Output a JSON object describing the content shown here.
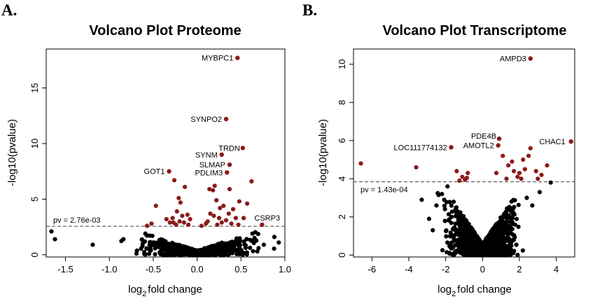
{
  "panel_labels": [
    "A.",
    "B."
  ],
  "chart_data": [
    {
      "type": "scatter",
      "panel": "A.",
      "title": "Volcano Plot Proteome",
      "xlabel": "log2fold change",
      "xlabel_main": "log",
      "xlabel_sub": "2",
      "xlabel_rest": "fold change",
      "ylabel": "-log10(pvalue)",
      "xlim": [
        -1.72,
        1.0
      ],
      "ylim": [
        -0.2,
        18.5
      ],
      "xticks": [
        -1.5,
        -1.0,
        -0.5,
        0.0,
        0.5,
        1.0
      ],
      "xtick_labels": [
        "-1.5",
        "-1.0",
        "-0.5",
        "0.0",
        "0.5",
        "1.0"
      ],
      "yticks": [
        0,
        5,
        10,
        15
      ],
      "ytick_labels": [
        "0",
        "5",
        "10",
        "15"
      ],
      "threshold": {
        "y": 2.56,
        "label": "pv = 2.76e-03"
      },
      "colors": {
        "significant": "#8b1a1a",
        "nonsignificant": "#000000"
      },
      "highlighted": [
        {
          "label": "MYBPC1",
          "x": 0.46,
          "y": 17.7
        },
        {
          "label": "SYNPO2",
          "x": 0.33,
          "y": 12.2
        },
        {
          "label": "TRDN",
          "x": 0.52,
          "y": 9.6
        },
        {
          "label": "SYNM",
          "x": 0.28,
          "y": 9.0
        },
        {
          "label": "SLMAP",
          "x": 0.37,
          "y": 8.1
        },
        {
          "label": "PDLIM3",
          "x": 0.34,
          "y": 7.4
        },
        {
          "label": "GOT1",
          "x": -0.32,
          "y": 7.5
        },
        {
          "label": "CSRP3",
          "x": 0.74,
          "y": 2.7
        }
      ],
      "significant_points": [
        [
          -0.26,
          6.7
        ],
        [
          -0.21,
          5.1
        ],
        [
          -0.47,
          4.4
        ],
        [
          -0.14,
          6.1
        ],
        [
          -0.19,
          4.7
        ],
        [
          -0.23,
          3.9
        ],
        [
          -0.17,
          3.5
        ],
        [
          -0.28,
          3.3
        ],
        [
          -0.11,
          3.6
        ],
        [
          -0.08,
          3.2
        ],
        [
          -0.31,
          2.9
        ],
        [
          -0.24,
          2.7
        ],
        [
          -0.35,
          3.2
        ],
        [
          -0.52,
          2.8
        ],
        [
          -0.15,
          2.9
        ],
        [
          -0.1,
          2.7
        ],
        [
          -0.57,
          2.6
        ],
        [
          -0.2,
          3.0
        ],
        [
          -0.27,
          2.9
        ],
        [
          0.2,
          6.2
        ],
        [
          0.18,
          5.8
        ],
        [
          0.14,
          5.9
        ],
        [
          0.37,
          5.9
        ],
        [
          0.62,
          6.6
        ],
        [
          0.22,
          4.9
        ],
        [
          0.3,
          4.4
        ],
        [
          0.41,
          4.1
        ],
        [
          0.48,
          4.8
        ],
        [
          0.26,
          4.2
        ],
        [
          0.15,
          3.7
        ],
        [
          0.19,
          3.5
        ],
        [
          0.25,
          3.3
        ],
        [
          0.33,
          3.1
        ],
        [
          0.44,
          3.3
        ],
        [
          0.53,
          3.3
        ],
        [
          0.57,
          4.6
        ],
        [
          0.12,
          3.0
        ],
        [
          0.36,
          3.7
        ],
        [
          0.28,
          2.9
        ],
        [
          0.47,
          2.7
        ],
        [
          0.39,
          2.8
        ],
        [
          0.23,
          2.7
        ],
        [
          0.1,
          2.8
        ],
        [
          0.05,
          2.6
        ]
      ],
      "nonsig_extra": [
        [
          -1.66,
          2.1
        ],
        [
          -1.62,
          1.4
        ],
        [
          -1.19,
          0.9
        ],
        [
          -0.84,
          1.4
        ],
        [
          -0.62,
          1.0
        ],
        [
          -0.59,
          1.9
        ],
        [
          0.88,
          1.6
        ],
        [
          0.93,
          1.1
        ],
        [
          0.76,
          0.9
        ],
        [
          0.7,
          0.6
        ],
        [
          -0.51,
          1.7
        ],
        [
          0.63,
          1.9
        ]
      ],
      "cloud": {
        "center_x": 0.0,
        "spread": 0.28,
        "max_y": 2.5,
        "count": 650
      }
    },
    {
      "type": "scatter",
      "panel": "B.",
      "title": "Volcano Plot Transcriptome",
      "xlabel": "log2fold change",
      "xlabel_main": "log",
      "xlabel_sub": "2",
      "xlabel_rest": "fold change",
      "ylabel": "-log10(pvalue)",
      "xlim": [
        -7.0,
        5.0
      ],
      "ylim": [
        -0.1,
        10.8
      ],
      "xticks": [
        -6,
        -4,
        -2,
        0,
        2,
        4
      ],
      "xtick_labels": [
        "-6",
        "-4",
        "-2",
        "0",
        "2",
        "4"
      ],
      "yticks": [
        0,
        2,
        4,
        6,
        8,
        10
      ],
      "ytick_labels": [
        "0",
        "2",
        "4",
        "6",
        "8",
        "10"
      ],
      "threshold": {
        "y": 3.84,
        "label": "pv = 1.43e-04"
      },
      "colors": {
        "significant": "#8b1a1a",
        "nonsignificant": "#000000"
      },
      "highlighted": [
        {
          "label": "AMPD3",
          "x": 2.6,
          "y": 10.3
        },
        {
          "label": "PDE4B",
          "x": 0.9,
          "y": 6.1
        },
        {
          "label": "AMOTL2",
          "x": 0.85,
          "y": 5.75
        },
        {
          "label": "LOC111774132",
          "x": -1.7,
          "y": 5.65
        },
        {
          "label": "CHAC1",
          "x": 4.8,
          "y": 5.95
        }
      ],
      "significant_points": [
        [
          -6.6,
          4.8
        ],
        [
          -3.6,
          4.6
        ],
        [
          -1.4,
          4.4
        ],
        [
          -1.1,
          4.1
        ],
        [
          -0.85,
          4.05
        ],
        [
          -0.95,
          3.95
        ],
        [
          -1.25,
          3.9
        ],
        [
          -0.8,
          4.3
        ],
        [
          1.1,
          5.2
        ],
        [
          1.4,
          4.7
        ],
        [
          1.7,
          4.4
        ],
        [
          2.0,
          4.3
        ],
        [
          2.3,
          4.5
        ],
        [
          2.6,
          5.6
        ],
        [
          2.5,
          5.2
        ],
        [
          2.9,
          4.4
        ],
        [
          3.2,
          4.2
        ],
        [
          3.5,
          4.7
        ],
        [
          1.9,
          4.1
        ],
        [
          1.3,
          4.0
        ],
        [
          0.75,
          4.3
        ],
        [
          2.1,
          4.0
        ],
        [
          3.0,
          4.0
        ],
        [
          1.6,
          4.9
        ],
        [
          2.2,
          5.0
        ]
      ],
      "nonsig_extra": [
        [
          3.7,
          3.8
        ],
        [
          -3.3,
          2.9
        ],
        [
          -2.9,
          1.9
        ],
        [
          -2.5,
          2.6
        ],
        [
          -2.2,
          3.2
        ],
        [
          2.7,
          2.6
        ],
        [
          3.1,
          3.3
        ],
        [
          -1.9,
          3.6
        ],
        [
          2.4,
          3.0
        ],
        [
          -2.7,
          1.3
        ]
      ],
      "cloud": {
        "center_x": 0.0,
        "spread": 0.75,
        "max_y": 3.8,
        "count": 1800
      }
    }
  ]
}
